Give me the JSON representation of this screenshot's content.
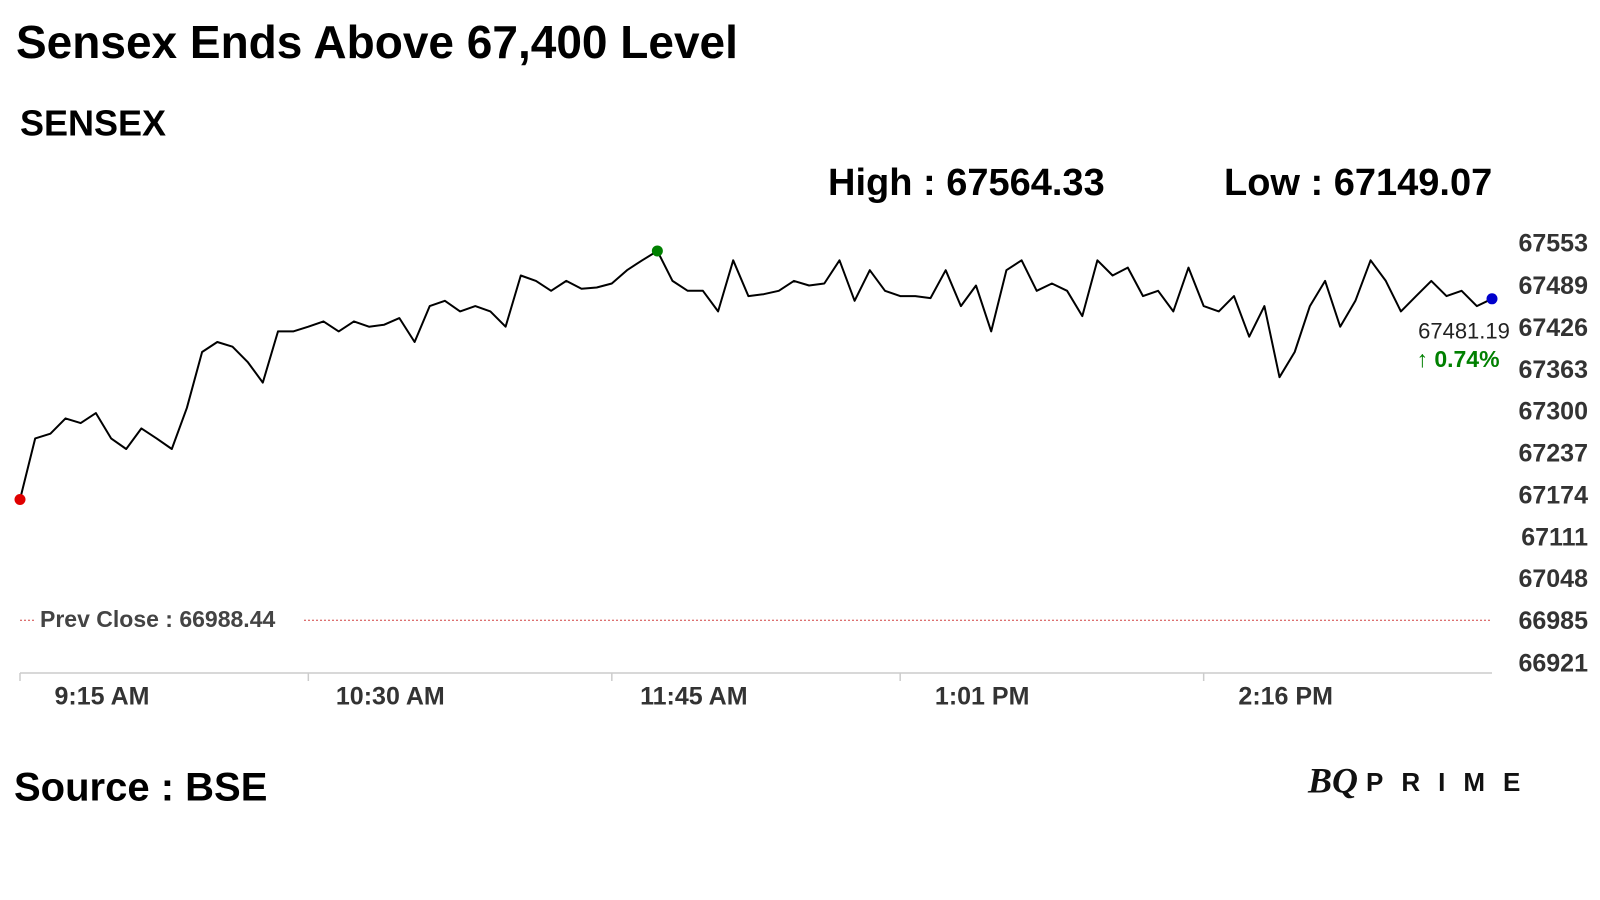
{
  "chart_data": {
    "type": "line",
    "title": "Sensex Ends Above 67,400 Level",
    "subtitle": "SENSEX",
    "high": {
      "label": "High :",
      "value": 67564.33
    },
    "low": {
      "label": "Low :",
      "value": 67149.07
    },
    "last": {
      "value": 67481.19,
      "label": "67481.19"
    },
    "change": {
      "value": 0.74,
      "label": "↑ 0.74%",
      "color": "#008000"
    },
    "prev_close": {
      "label": "Prev Close :",
      "value": 66988.44,
      "color": "#d04040"
    },
    "source": "Source : BSE",
    "logo": [
      "BQ",
      "PRIME"
    ],
    "categories": [
      "9:15 AM",
      null,
      null,
      null,
      null,
      null,
      null,
      null,
      null,
      null,
      null,
      null,
      null,
      null,
      null,
      null,
      null,
      null,
      null,
      "10:30 AM",
      null,
      null,
      null,
      null,
      null,
      null,
      null,
      null,
      null,
      null,
      null,
      null,
      null,
      null,
      null,
      null,
      null,
      null,
      null,
      "11:45 AM",
      null,
      null,
      null,
      null,
      null,
      null,
      null,
      null,
      null,
      null,
      null,
      null,
      null,
      null,
      null,
      null,
      null,
      null,
      "1:01 PM",
      null,
      null,
      null,
      null,
      null,
      null,
      null,
      null,
      null,
      null,
      null,
      null,
      null,
      null,
      null,
      null,
      null,
      null,
      null,
      "2:16 PM",
      null,
      null,
      null,
      null,
      null,
      null,
      null,
      null,
      null,
      null,
      null,
      null,
      null,
      null,
      null,
      null,
      null,
      null,
      null
    ],
    "series": [
      {
        "name": "SENSEX",
        "color": "#000000",
        "values": [
          67170,
          67262,
          67269,
          67292,
          67285,
          67300,
          67262,
          67246,
          67277,
          67262,
          67246,
          67308,
          67392,
          67407,
          67400,
          67377,
          67346,
          67423,
          67423,
          67430,
          67438,
          67423,
          67438,
          67430,
          67433,
          67443,
          67407,
          67461,
          67469,
          67453,
          67461,
          67453,
          67430,
          67507,
          67499,
          67484,
          67499,
          67487,
          67489,
          67495,
          67515,
          67530,
          67544,
          67499,
          67484,
          67484,
          67453,
          67530,
          67476,
          67479,
          67484,
          67499,
          67492,
          67495,
          67530,
          67469,
          67515,
          67484,
          67476,
          67476,
          67473,
          67515,
          67461,
          67492,
          67423,
          67515,
          67530,
          67484,
          67495,
          67484,
          67446,
          67530,
          67507,
          67519,
          67476,
          67484,
          67453,
          67519,
          67461,
          67453,
          67476,
          67415,
          67461,
          67354,
          67392,
          67461,
          67499,
          67430,
          67469,
          67530,
          67499,
          67453,
          67476,
          67499,
          67476,
          67484,
          67461,
          67472
        ]
      }
    ],
    "marker_colors": {
      "first": "#e00000",
      "high": "#008000",
      "last": "#0000cc"
    },
    "ylim": [
      66909,
      67568
    ],
    "yticks": [
      67553,
      67489,
      67426,
      67363,
      67300,
      67237,
      67174,
      67111,
      67048,
      66985,
      66921
    ],
    "grid": false
  }
}
